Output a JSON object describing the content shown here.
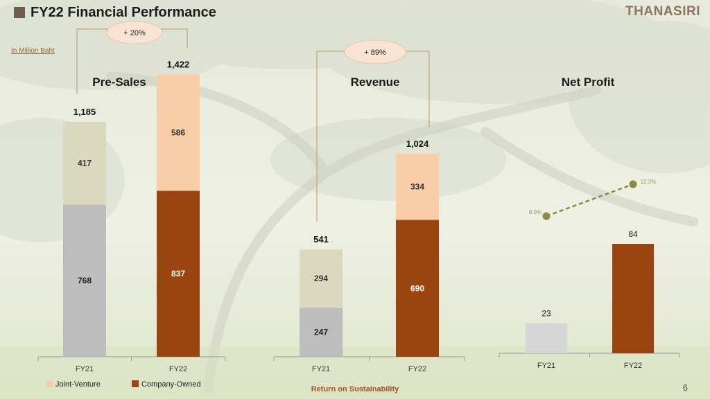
{
  "page": {
    "title": "FY22 Financial Performance",
    "logo": "THANASIRI",
    "unit_note": "In Million Baht",
    "footer": "Return on Sustainability",
    "page_number": "6"
  },
  "colors": {
    "joint_venture": "#f9cda8",
    "company_owned": "#9a4410",
    "fy21_upper": "#dcd8c0",
    "fy21_lower": "#bdbdbd",
    "fy21_profit": "#d6d6d6",
    "growth_bubble": "#fbe3d3",
    "margin_line": "#8f8a40"
  },
  "chart_data": [
    {
      "type": "bar",
      "stacked": true,
      "title": "Pre-Sales",
      "categories": [
        "FY21",
        "FY22"
      ],
      "series": [
        {
          "name": "Company-Owned",
          "values": [
            768,
            837
          ]
        },
        {
          "name": "Joint-Venture",
          "values": [
            417,
            586
          ]
        }
      ],
      "totals": [
        "1,185",
        "1,422"
      ],
      "growth": "+ 20%",
      "ylim": [
        0,
        1422
      ]
    },
    {
      "type": "bar",
      "stacked": true,
      "title": "Revenue",
      "categories": [
        "FY21",
        "FY22"
      ],
      "series": [
        {
          "name": "Company-Owned",
          "values": [
            247,
            690
          ]
        },
        {
          "name": "Joint-Venture",
          "values": [
            294,
            334
          ]
        }
      ],
      "totals": [
        "541",
        "1,024"
      ],
      "growth": "+ 89%",
      "ylim": [
        0,
        1024
      ]
    },
    {
      "type": "bar",
      "title": "Net Profit",
      "categories": [
        "FY21",
        "FY22"
      ],
      "series": [
        {
          "name": "Company-Owned",
          "values": [
            23,
            84
          ]
        }
      ],
      "margin": {
        "values": [
          8.0,
          12.2
        ],
        "labels": [
          "8.0%",
          "12.2%"
        ]
      },
      "ylim": [
        0,
        100
      ]
    }
  ],
  "legend": {
    "position": "bottom-left",
    "items": [
      {
        "label": "Joint-Venture",
        "color": "#f9cda8"
      },
      {
        "label": "Company-Owned",
        "color": "#9a4410"
      }
    ]
  }
}
